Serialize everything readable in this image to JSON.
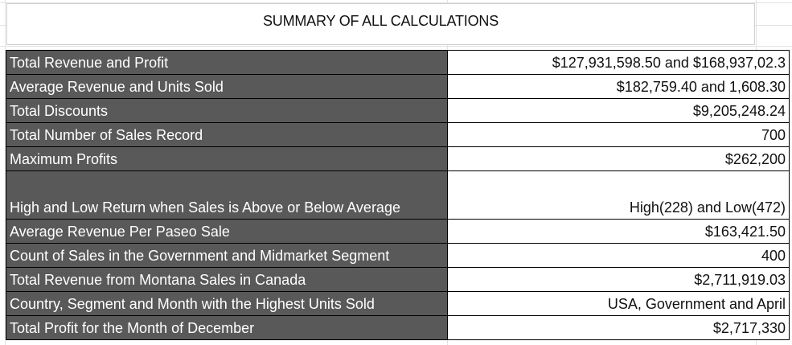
{
  "title": "SUMMARY OF ALL CALCULATIONS",
  "colors": {
    "label_bg": "#595959",
    "label_text": "#ffffff",
    "value_bg": "#ffffff"
  },
  "rows": [
    {
      "label": "Total Revenue and Profit",
      "value": "$127,931,598.50 and $168,937,02.3"
    },
    {
      "label": "Average Revenue and Units Sold",
      "value": "$182,759.40 and 1,608.30"
    },
    {
      "label": "Total Discounts",
      "value": "$9,205,248.24"
    },
    {
      "label": "Total Number of Sales Record",
      "value": "700"
    },
    {
      "label": "Maximum Profits",
      "value": "$262,200"
    },
    {
      "label": "High and Low Return when Sales is Above or Below Average",
      "value": "High(228) and Low(472)"
    },
    {
      "label": "Average Revenue Per Paseo Sale",
      "value": "$163,421.50"
    },
    {
      "label": "Count of Sales in the Government and Midmarket Segment",
      "value": "400"
    },
    {
      "label": "Total Revenue from Montana Sales in Canada",
      "value": "$2,711,919.03"
    },
    {
      "label": "Country, Segment and Month with the Highest Units Sold",
      "value": "USA, Government and April"
    },
    {
      "label": "Total Profit for the Month of December",
      "value": "$2,717,330"
    }
  ]
}
